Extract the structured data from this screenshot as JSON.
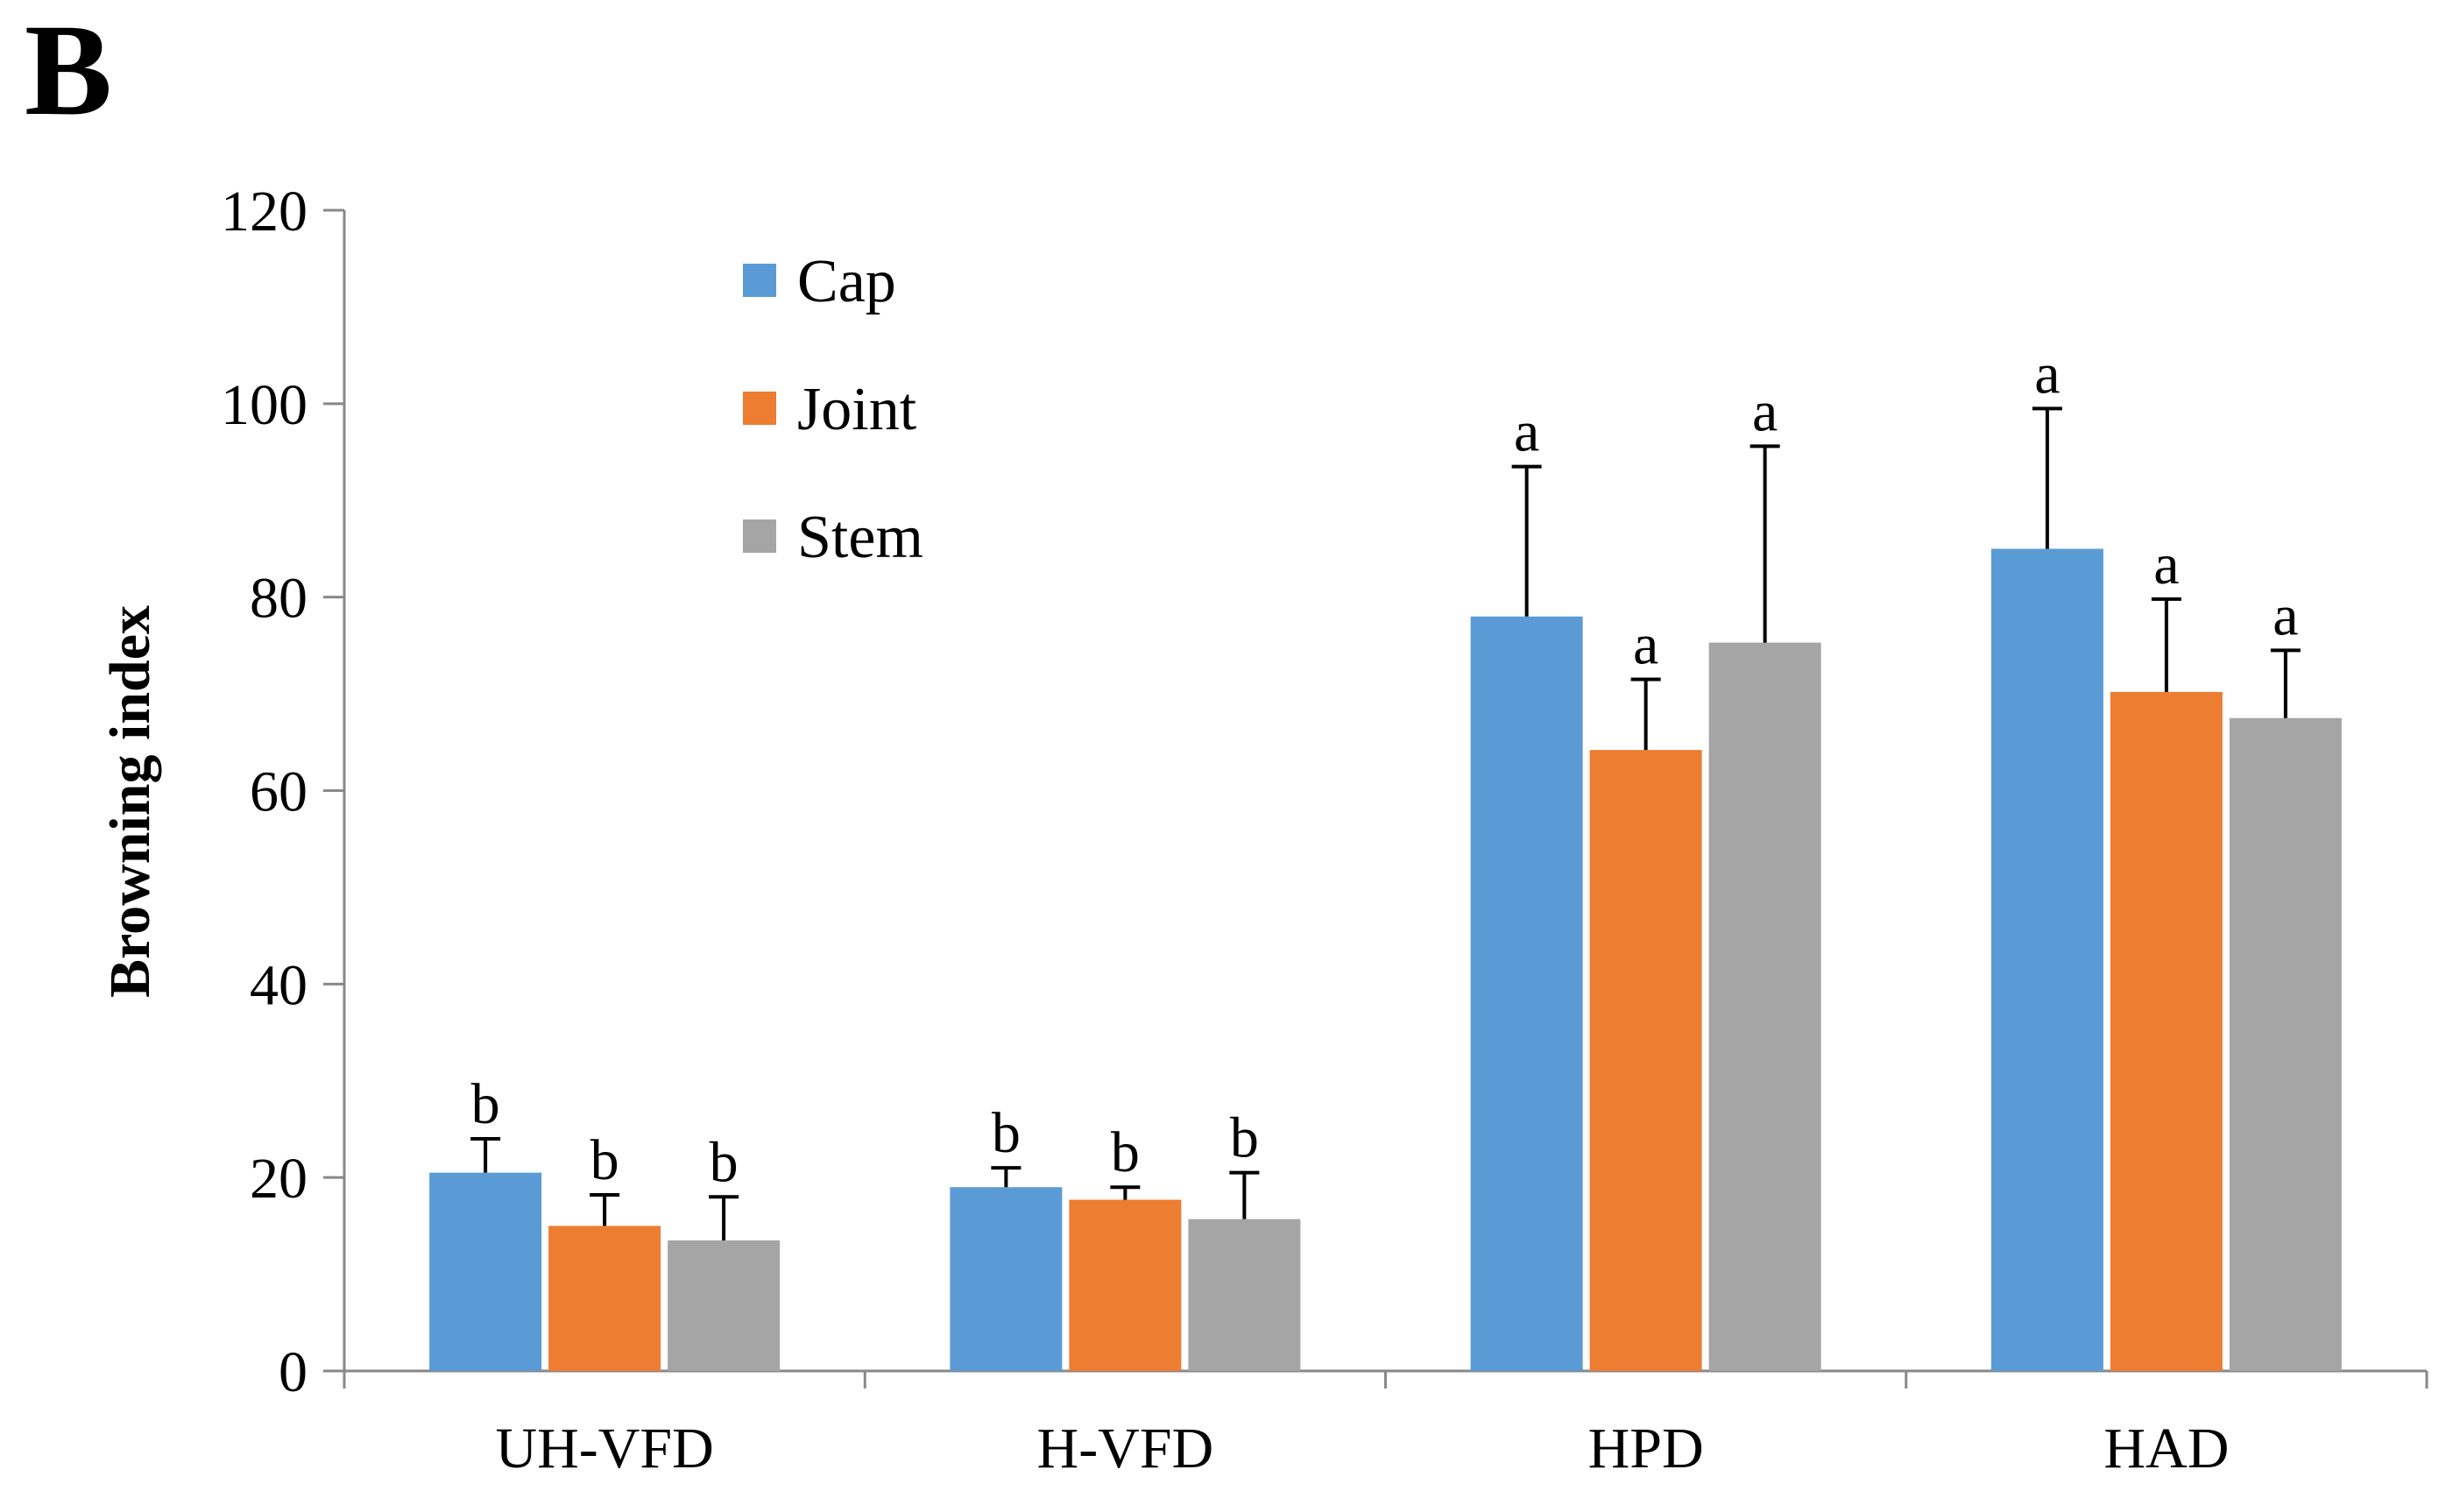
{
  "panel_label": "B",
  "chart_data": {
    "type": "bar",
    "title": "",
    "xlabel": "",
    "ylabel": "Browning index",
    "ylim": [
      0,
      120
    ],
    "yticks": [
      "0",
      "20",
      "40",
      "60",
      "80",
      "100",
      "120"
    ],
    "categories": [
      "UH-VFD",
      "H-VFD",
      "HPD",
      "HAD"
    ],
    "legend_position": "top-left",
    "series": [
      {
        "name": "Cap",
        "color": "#5b9bd5",
        "values": [
          20.5,
          19.0,
          78.0,
          85.0
        ],
        "errors": [
          3.5,
          2.0,
          15.5,
          14.5
        ],
        "labels": [
          "b",
          "b",
          "a",
          "a"
        ]
      },
      {
        "name": "Joint",
        "color": "#ed7d31",
        "values": [
          15.0,
          17.7,
          64.2,
          70.2
        ],
        "errors": [
          3.2,
          1.3,
          7.3,
          9.6
        ],
        "labels": [
          "b",
          "b",
          "a",
          "a"
        ]
      },
      {
        "name": "Stem",
        "color": "#a5a5a5",
        "values": [
          13.5,
          15.7,
          75.3,
          67.5
        ],
        "errors": [
          4.5,
          4.8,
          20.3,
          7.0
        ],
        "labels": [
          "b",
          "b",
          "a",
          "a"
        ]
      }
    ]
  }
}
